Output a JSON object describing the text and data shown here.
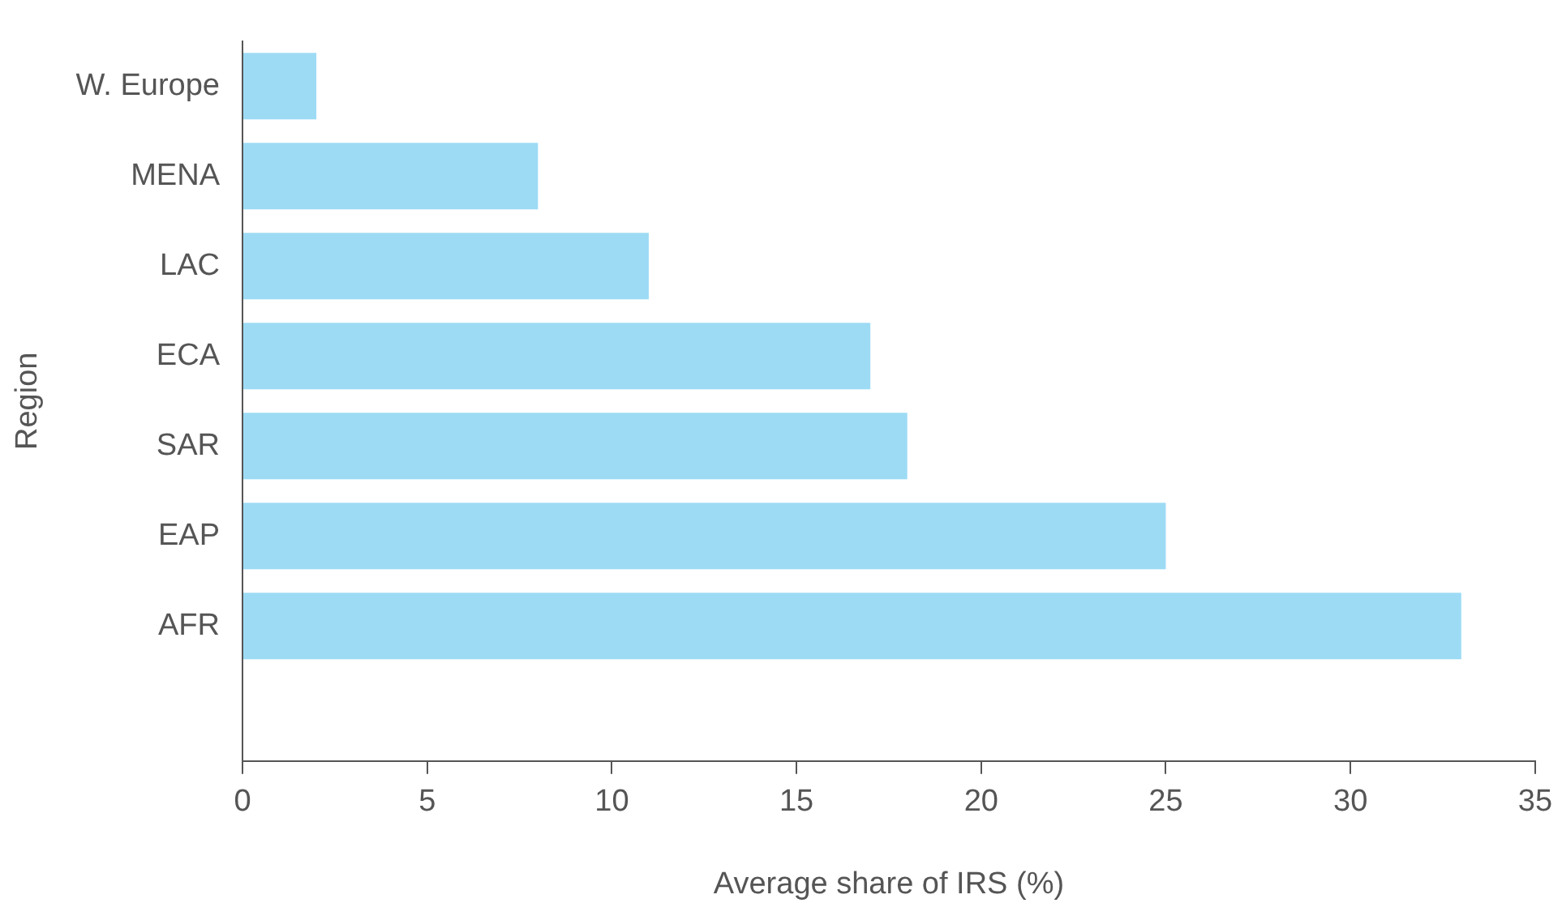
{
  "chart_data": {
    "type": "bar",
    "orientation": "horizontal",
    "xlabel": "Average share of IRS (%)",
    "ylabel": "Region",
    "categories": [
      "W. Europe",
      "MENA",
      "LAC",
      "ECA",
      "SAR",
      "EAP",
      "AFR",
      null
    ],
    "values": [
      2,
      8,
      11,
      17,
      18,
      25,
      33,
      null
    ],
    "color": "#9ddbf5",
    "xlim": [
      0,
      35
    ],
    "xticks": [
      0,
      5,
      10,
      15,
      20,
      25,
      30,
      35
    ],
    "grid": false,
    "legend": false
  }
}
